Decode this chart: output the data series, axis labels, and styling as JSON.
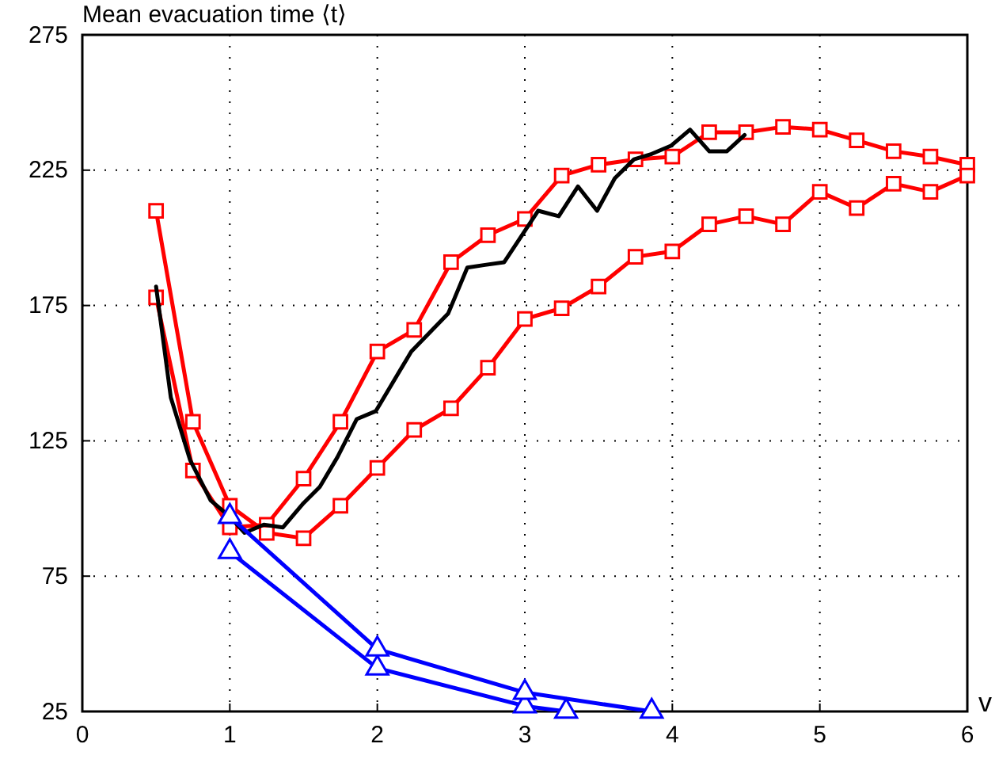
{
  "chart_data": {
    "type": "line",
    "ylabel": "Mean evacuation time ⟨t⟩",
    "xlabel": "v",
    "xlim": [
      0,
      6
    ],
    "ylim": [
      25,
      275
    ],
    "xticks": [
      0,
      1,
      2,
      3,
      4,
      5,
      6
    ],
    "yticks": [
      25,
      75,
      125,
      175,
      225,
      275
    ],
    "grid": true,
    "line_style": "solid",
    "series": [
      {
        "color": "#ff0000",
        "marker": "square",
        "x": [
          0.5,
          0.75,
          1,
          1.25,
          1.5,
          1.75,
          2,
          2.25,
          2.5,
          2.75,
          3,
          3.25,
          3.5,
          3.75,
          4,
          4.25,
          4.5,
          4.75,
          5,
          5.25,
          5.5,
          5.75,
          6
        ],
        "values": [
          178,
          114,
          93,
          94,
          111,
          132,
          158,
          166,
          191,
          201,
          207,
          223,
          227,
          229,
          230,
          239,
          239,
          241,
          240,
          236,
          232,
          230,
          227
        ]
      },
      {
        "color": "#ff0000",
        "marker": "square",
        "x": [
          0.5,
          0.75,
          1,
          1.25,
          1.5,
          1.75,
          2,
          2.25,
          2.5,
          2.75,
          3,
          3.25,
          3.5,
          3.75,
          4,
          4.25,
          4.5,
          4.75,
          5,
          5.25,
          5.5,
          5.75,
          6
        ],
        "values": [
          210,
          132,
          101,
          91,
          89,
          101,
          115,
          129,
          137,
          152,
          170,
          174,
          182,
          193,
          195,
          205,
          208,
          205,
          217,
          211,
          220,
          217,
          223
        ]
      },
      {
        "color": "#000000",
        "marker": "none",
        "x": [
          0.5,
          0.6,
          0.73,
          0.87,
          1,
          1.1,
          1.23,
          1.36,
          1.5,
          1.61,
          1.73,
          1.86,
          1.99,
          2.23,
          2.48,
          2.61,
          2.73,
          2.86,
          3.09,
          3.23,
          3.36,
          3.49,
          3.61,
          3.74,
          3.86,
          3.99,
          4.12,
          4.25,
          4.37,
          4.49
        ],
        "values": [
          182,
          141,
          118,
          103,
          97,
          91,
          94,
          93,
          102,
          108,
          119,
          133,
          136,
          158,
          172,
          189,
          190,
          191,
          210,
          208,
          219,
          210,
          222,
          229,
          231,
          234,
          240,
          232,
          232,
          238
        ]
      },
      {
        "color": "#0000ff",
        "marker": "triangle",
        "x": [
          1,
          2,
          3,
          3.28
        ],
        "values": [
          84,
          41,
          27,
          25
        ]
      },
      {
        "color": "#0000ff",
        "marker": "triangle",
        "x": [
          1,
          2,
          3,
          3.86
        ],
        "values": [
          97,
          48,
          32,
          25
        ]
      }
    ]
  }
}
